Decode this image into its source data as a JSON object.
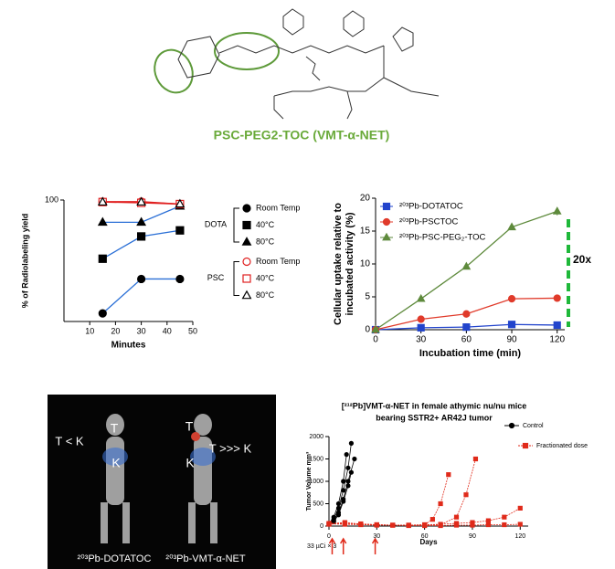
{
  "structure": {
    "title": "PSC-PEG2-TOC (VMT-α-NET)"
  },
  "images": {
    "labels": [
      "T < K",
      "T",
      "K",
      "T",
      "T >>> K",
      "K"
    ],
    "captions": [
      "²⁰³Pb-DOTATOC",
      "²⁰³Pb-VMT-α-NET"
    ]
  },
  "chart_data": [
    {
      "type": "line",
      "x_label": "Minutes",
      "y_label": "% of Radiolabeling yield",
      "xlim": [
        0,
        50
      ],
      "xticks": [
        10,
        20,
        30,
        40,
        50
      ],
      "ylim": [
        70,
        100
      ],
      "yticks": [
        100
      ],
      "series": [
        {
          "group": "DOTA",
          "name": "Room Temp",
          "color": "#2a6fd6",
          "marker_color": "#000000",
          "marker": "circle",
          "filled": true,
          "x": [
            15,
            30,
            45
          ],
          "values": [
            72,
            80.5,
            80.5
          ]
        },
        {
          "group": "DOTA",
          "name": "40°C",
          "color": "#2a6fd6",
          "marker_color": "#000000",
          "marker": "square",
          "filled": true,
          "x": [
            15,
            30,
            45
          ],
          "values": [
            85.5,
            91,
            92.5
          ]
        },
        {
          "group": "DOTA",
          "name": "80°C",
          "color": "#2a6fd6",
          "marker_color": "#000000",
          "marker": "triangle",
          "filled": true,
          "x": [
            15,
            30,
            45
          ],
          "values": [
            94.5,
            94.5,
            98.5
          ]
        },
        {
          "group": "PSC",
          "name": "Room Temp",
          "color": "#e02020",
          "marker_color": "#e02020",
          "marker": "circle",
          "filled": false,
          "x": [
            15,
            30,
            45
          ],
          "values": [
            99.6,
            99.6,
            99
          ]
        },
        {
          "group": "PSC",
          "name": "40°C",
          "color": "#e02020",
          "marker_color": "#e02020",
          "marker": "square",
          "filled": false,
          "x": [
            15,
            30,
            45
          ],
          "values": [
            99.5,
            99.3,
            99
          ]
        },
        {
          "group": "PSC",
          "name": "80°C",
          "color": "#e02020",
          "marker_color": "#000000",
          "marker": "triangle",
          "filled": false,
          "x": [
            15,
            30,
            45
          ],
          "values": [
            99.5,
            99.5,
            99
          ]
        }
      ]
    },
    {
      "type": "line",
      "x_label": "Incubation time (min)",
      "y_label": [
        "Cellular uptake relative to",
        "incubated activity (%)"
      ],
      "xlim": [
        0,
        125
      ],
      "xticks": [
        0,
        30,
        60,
        90,
        120
      ],
      "ylim": [
        0,
        20
      ],
      "yticks": [
        0,
        5,
        10,
        15,
        20
      ],
      "annotation": "20x",
      "series": [
        {
          "name": "²⁰³Pb-DOTATOC",
          "color": "#2244cc",
          "marker_color": "#2244cc",
          "marker": "square",
          "filled": true,
          "x": [
            0,
            30,
            60,
            90,
            120
          ],
          "values": [
            0,
            0.3,
            0.4,
            0.8,
            0.7
          ]
        },
        {
          "name": "²⁰³Pb-PSCTOC",
          "color": "#e03a2a",
          "marker_color": "#e03a2a",
          "marker": "circle",
          "filled": true,
          "x": [
            0,
            30,
            60,
            90,
            120
          ],
          "values": [
            0,
            1.6,
            2.4,
            4.7,
            4.8
          ]
        },
        {
          "name": "²⁰³Pb-PSC-PEG₂-TOC",
          "color": "#5e8a3c",
          "marker_color": "#5e8a3c",
          "marker": "triangle",
          "filled": true,
          "x": [
            0,
            30,
            60,
            90,
            120
          ],
          "values": [
            0,
            4.7,
            9.6,
            15.6,
            18
          ],
          "errors": [
            0,
            0,
            0,
            0,
            0.6
          ]
        }
      ]
    },
    {
      "type": "multiline",
      "title": [
        "[²¹²Pb]VMT-α-NET in female athymic nu/nu mice",
        "bearing SSTR2+ AR42J tumor"
      ],
      "x_label": "Days",
      "y_label": "Tumor Volume mm³",
      "xlim": [
        0,
        125
      ],
      "xticks": [
        0,
        30,
        60,
        90,
        120
      ],
      "ylim": [
        0,
        2000
      ],
      "yticks": [
        0,
        500,
        1000,
        1500,
        2000
      ],
      "annotation": "33 µCi × 3",
      "dose_days": [
        2,
        9,
        29
      ],
      "series": [
        {
          "name": "Control",
          "color": "#000000",
          "marker": "circle",
          "lines": [
            {
              "x": [
                0,
                3,
                6,
                9,
                12,
                14
              ],
              "values": [
                50,
                150,
                400,
                800,
                1300,
                1850
              ]
            },
            {
              "x": [
                0,
                3,
                6,
                9,
                12,
                16
              ],
              "values": [
                50,
                120,
                300,
                600,
                1000,
                1500
              ]
            },
            {
              "x": [
                0,
                3,
                6,
                9,
                12,
                14
              ],
              "values": [
                40,
                100,
                250,
                550,
                900,
                1200
              ]
            },
            {
              "x": [
                0,
                3,
                6,
                9,
                11
              ],
              "values": [
                60,
                200,
                500,
                1000,
                1600
              ]
            }
          ]
        },
        {
          "name": "Fractionated dose",
          "color": "#e02a1a",
          "marker": "square",
          "lines": [
            {
              "x": [
                0,
                10,
                20,
                30,
                40,
                50,
                60,
                65,
                70,
                75
              ],
              "values": [
                50,
                80,
                40,
                30,
                20,
                20,
                30,
                150,
                500,
                1150
              ]
            },
            {
              "x": [
                0,
                10,
                20,
                30,
                40,
                50,
                60,
                70,
                80,
                86,
                92
              ],
              "values": [
                60,
                70,
                50,
                30,
                20,
                20,
                20,
                30,
                200,
                700,
                1500
              ]
            },
            {
              "x": [
                0,
                10,
                20,
                30,
                40,
                50,
                60,
                70,
                80,
                90,
                100,
                110,
                120
              ],
              "values": [
                40,
                60,
                40,
                30,
                20,
                20,
                30,
                40,
                60,
                80,
                120,
                200,
                400
              ]
            },
            {
              "x": [
                0,
                10,
                20,
                30,
                40,
                50,
                60,
                70,
                80,
                90,
                100,
                110,
                120
              ],
              "values": [
                50,
                40,
                30,
                20,
                20,
                10,
                10,
                10,
                20,
                20,
                30,
                30,
                40
              ]
            }
          ]
        }
      ]
    }
  ]
}
